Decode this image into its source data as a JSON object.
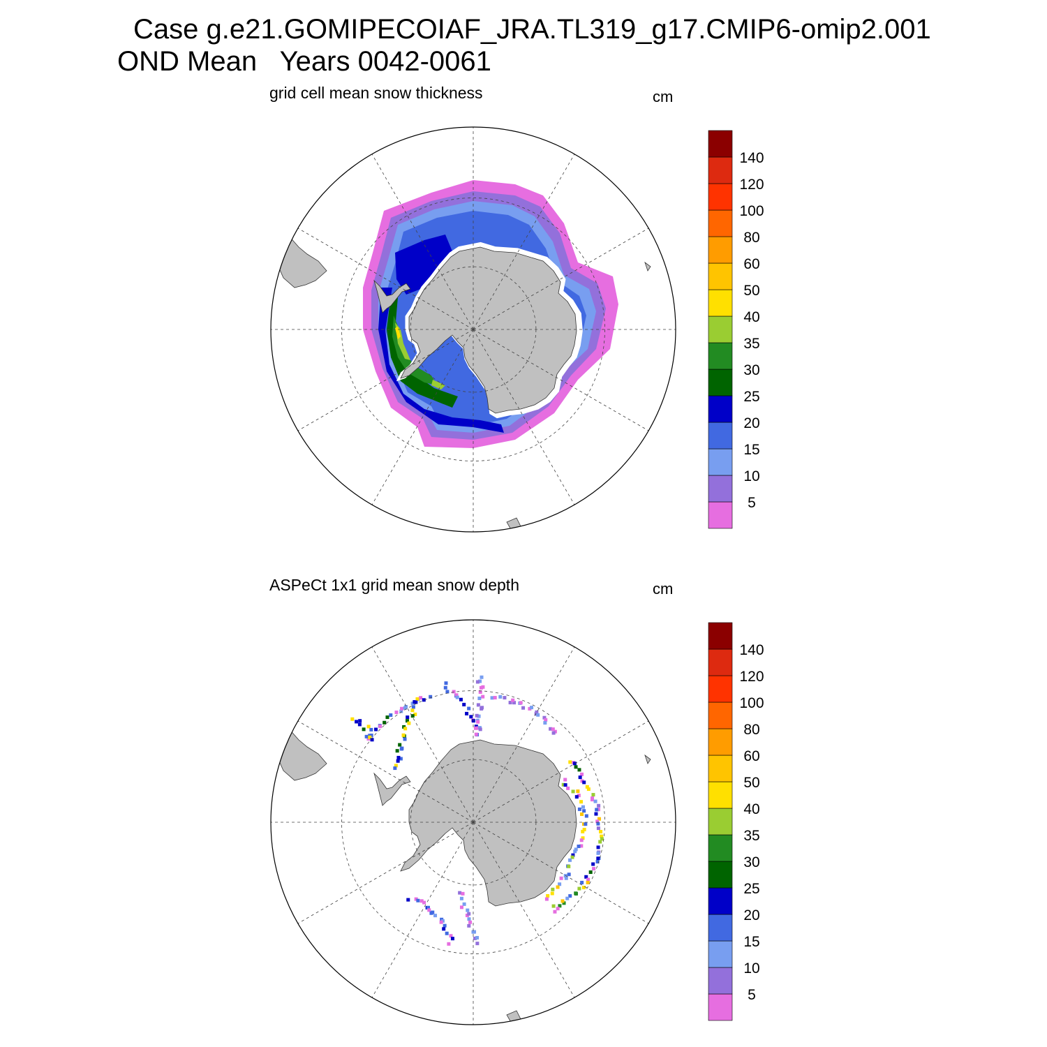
{
  "header": {
    "line1": "Case g.e21.GOMIPECOIAF_JRA.TL319_g17.CMIP6-omip2.001",
    "line2": "OND Mean   Years 0042-0061"
  },
  "panels": [
    {
      "title": "grid cell mean snow thickness",
      "units": "cm"
    },
    {
      "title": "ASPeCt 1x1 grid mean snow depth",
      "units": "cm"
    }
  ],
  "colorbar": {
    "labels": [
      "5",
      "10",
      "15",
      "20",
      "25",
      "30",
      "35",
      "40",
      "50",
      "60",
      "80",
      "100",
      "120",
      "140"
    ],
    "colors": [
      "#e66ee0",
      "#9370db",
      "#789ef0",
      "#4169e1",
      "#0000c8",
      "#006400",
      "#228b22",
      "#9acd32",
      "#ffe000",
      "#ffc400",
      "#ff9c00",
      "#ff6600",
      "#ff3300",
      "#dd2a10",
      "#8b0000"
    ]
  },
  "map_colors": {
    "land": "#c0c0c0",
    "grid": "#444444"
  },
  "chart_data": [
    {
      "type": "heatmap",
      "title": "grid cell mean snow thickness",
      "colorbar_units": "cm",
      "levels": [
        5,
        10,
        15,
        20,
        25,
        30,
        35,
        40,
        50,
        60,
        80,
        100,
        120,
        140
      ],
      "projection": "south polar stereographic",
      "field": "model snow thickness, continuous ring around Antarctica; thickest (25-50 cm) in western Weddell Sea, 15-25 cm in Ross/Amundsen sector, <10 cm at ice edge"
    },
    {
      "type": "heatmap",
      "title": "ASPeCt 1x1 grid mean snow depth",
      "colorbar_units": "cm",
      "levels": [
        5,
        10,
        15,
        20,
        25,
        30,
        35,
        40,
        50,
        60,
        80,
        100,
        120,
        140
      ],
      "projection": "south polar stereographic",
      "field": "ship-track observations: sparse tracks; dense coverage in East Antarctic sector with values mostly 5-25 cm, some 30-60 cm near coast"
    }
  ]
}
